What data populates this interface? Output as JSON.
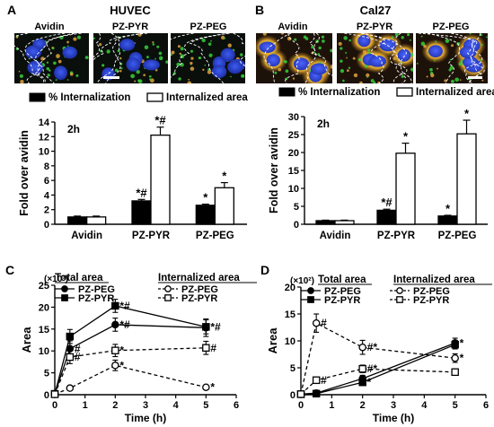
{
  "panel_letters": {
    "a": "A",
    "b": "B",
    "c": "C",
    "d": "D"
  },
  "micrographs": {
    "a": {
      "title": "HUVEC",
      "labels": [
        "Avidin",
        "PZ-PYR",
        "PZ-PEG"
      ]
    },
    "b": {
      "title": "Cal27",
      "labels": [
        "Avidin",
        "PZ-PYR",
        "PZ-PEG"
      ]
    }
  },
  "colors": {
    "filled": "#000000",
    "open": "#ffffff",
    "cell_a": "#0a0f0c",
    "cell_b": "#1d120a",
    "nucleus": "#2b45d8",
    "green": "#36d03c",
    "orange": "#e0a23c"
  },
  "chart_data": [
    {
      "id": "A",
      "type": "bar",
      "legend": [
        "% Internalization",
        "Internalized area"
      ],
      "time_label": "2h",
      "ylabel": "Fold over avidin",
      "ylim": [
        0,
        14
      ],
      "yticks": [
        0,
        2,
        4,
        6,
        8,
        10,
        12,
        14
      ],
      "categories": [
        "Avidin",
        "PZ-PYR",
        "PZ-PEG"
      ],
      "series": [
        {
          "name": "% Internalization",
          "fill": "black",
          "values": [
            1.0,
            3.2,
            2.6
          ],
          "errors": [
            0.12,
            0.2,
            0.15
          ],
          "marks": [
            "",
            "*#",
            "*"
          ]
        },
        {
          "name": "Internalized area",
          "fill": "white",
          "values": [
            1.0,
            12.2,
            5.0
          ],
          "errors": [
            0.12,
            1.1,
            0.7
          ],
          "marks": [
            "",
            "*#",
            "*"
          ]
        }
      ]
    },
    {
      "id": "B",
      "type": "bar",
      "legend": [
        "% Internalization",
        "Internalized area"
      ],
      "time_label": "2h",
      "ylabel": "Fold over avidin",
      "ylim": [
        0,
        30
      ],
      "yticks": [
        0,
        5,
        10,
        15,
        20,
        25,
        30
      ],
      "categories": [
        "Avidin",
        "PZ-PYR",
        "PZ-PEG"
      ],
      "series": [
        {
          "name": "% Internalization",
          "fill": "black",
          "values": [
            1.0,
            3.9,
            2.3
          ],
          "errors": [
            0.15,
            0.3,
            0.2
          ],
          "marks": [
            "",
            "*#",
            "*"
          ]
        },
        {
          "name": "Internalized area",
          "fill": "white",
          "values": [
            1.0,
            19.8,
            25.2
          ],
          "errors": [
            0.15,
            2.8,
            3.8
          ],
          "marks": [
            "",
            "*",
            "*"
          ]
        }
      ]
    },
    {
      "id": "C",
      "type": "line",
      "multiplier": "(×10³)",
      "group_labels": [
        "Total area",
        "Internalized area"
      ],
      "xlabel": "Time (h)",
      "ylabel": "Area",
      "xlim": [
        0,
        6
      ],
      "ylim": [
        0,
        25
      ],
      "xticks": [
        0,
        1,
        2,
        3,
        4,
        5,
        6
      ],
      "yticks": [
        0,
        5,
        10,
        15,
        20,
        25
      ],
      "x": [
        0,
        0.5,
        2,
        5
      ],
      "series": [
        {
          "name": "PZ-PEG",
          "group": "Total area",
          "marker": "circle",
          "filled": true,
          "dashed": false,
          "values": [
            0.2,
            10.5,
            16.0,
            15.3
          ],
          "errors": [
            0.1,
            1.8,
            1.5,
            2.0
          ],
          "marks": [
            "",
            "#",
            "*#",
            ""
          ]
        },
        {
          "name": "PZ-PYR",
          "group": "Total area",
          "marker": "square",
          "filled": true,
          "dashed": false,
          "values": [
            0.2,
            13.3,
            20.3,
            15.5
          ],
          "errors": [
            0.1,
            1.6,
            1.5,
            1.6
          ],
          "marks": [
            "",
            "",
            "*#",
            "*#"
          ]
        },
        {
          "name": "PZ-PEG",
          "group": "Internalized area",
          "marker": "circle",
          "filled": false,
          "dashed": true,
          "values": [
            0.1,
            1.5,
            6.7,
            1.7
          ],
          "errors": [
            0.05,
            0.4,
            1.2,
            0.4
          ],
          "marks": [
            "",
            "",
            "*",
            "*"
          ]
        },
        {
          "name": "PZ-PYR",
          "group": "Internalized area",
          "marker": "square",
          "filled": false,
          "dashed": true,
          "values": [
            0.1,
            8.6,
            10.1,
            10.7
          ],
          "errors": [
            0.05,
            1.5,
            1.4,
            1.5
          ],
          "marks": [
            "",
            "#",
            "*",
            "#"
          ]
        }
      ]
    },
    {
      "id": "D",
      "type": "line",
      "multiplier": "(×10²)",
      "group_labels": [
        "Total area",
        "Internalized area"
      ],
      "xlabel": "Time (h)",
      "ylabel": "Area",
      "xlim": [
        0,
        6
      ],
      "ylim": [
        0,
        20
      ],
      "xticks": [
        0,
        1,
        2,
        3,
        4,
        5,
        6
      ],
      "yticks": [
        0,
        5,
        10,
        15,
        20
      ],
      "x": [
        0,
        0.5,
        2,
        5
      ],
      "series": [
        {
          "name": "PZ-PEG",
          "group": "Total area",
          "marker": "circle",
          "filled": true,
          "dashed": false,
          "values": [
            0.1,
            0.3,
            3.0,
            9.6
          ],
          "errors": [
            0.05,
            0.2,
            0.6,
            0.9
          ],
          "marks": [
            "",
            "",
            "",
            "*"
          ]
        },
        {
          "name": "PZ-PYR",
          "group": "Total area",
          "marker": "square",
          "filled": true,
          "dashed": false,
          "values": [
            0.1,
            0.2,
            2.3,
            9.3
          ],
          "errors": [
            0.05,
            0.2,
            0.5,
            0.8
          ],
          "marks": [
            "",
            "",
            "*",
            ""
          ]
        },
        {
          "name": "PZ-PEG",
          "group": "Internalized area",
          "marker": "circle",
          "filled": false,
          "dashed": true,
          "values": [
            0.1,
            13.3,
            8.8,
            6.8
          ],
          "errors": [
            0.05,
            1.7,
            1.3,
            0.8
          ],
          "marks": [
            "",
            "#",
            "#*",
            "*"
          ]
        },
        {
          "name": "PZ-PYR",
          "group": "Internalized area",
          "marker": "square",
          "filled": false,
          "dashed": true,
          "values": [
            0.1,
            2.7,
            4.8,
            4.2
          ],
          "errors": [
            0.05,
            0.5,
            0.7,
            0.6
          ],
          "marks": [
            "",
            "#",
            "#*",
            ""
          ]
        }
      ]
    }
  ]
}
